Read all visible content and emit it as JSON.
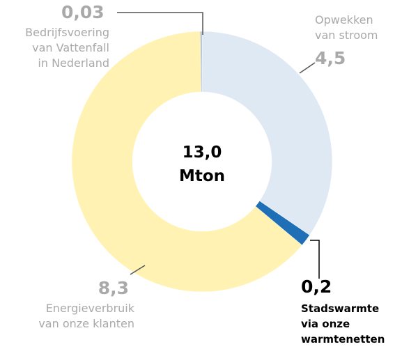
{
  "chart_data": {
    "type": "donut",
    "categories": [
      "Opwekken\nvan stroom",
      "Stadswarmte\nvia onze\nwarmtenetten",
      "Energieverbruik\nvan onze klanten",
      "Bedrijfsvoering\nvan Vattenfall\nin Nederland"
    ],
    "values": [
      4.5,
      0.2,
      8.3,
      0.03
    ],
    "value_labels": [
      "4,5",
      "0,2",
      "8,3",
      "0,03"
    ],
    "colors": [
      "#dfe9f4",
      "#1f6fb6",
      "#fff2b3",
      "#a7b3c1"
    ],
    "center_text": [
      "13,0",
      "Mton"
    ]
  }
}
